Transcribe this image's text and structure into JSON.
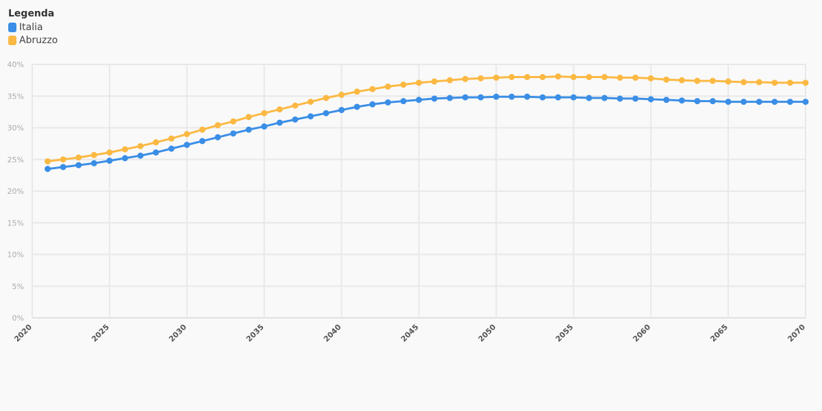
{
  "legend": {
    "title": "Legenda",
    "items": [
      {
        "label": "Italia",
        "color": "#3a8ee6"
      },
      {
        "label": "Abruzzo",
        "color": "#fbb943"
      }
    ]
  },
  "chart_data": {
    "type": "line",
    "title": "",
    "xlabel": "",
    "ylabel": "",
    "xlim": [
      2020,
      2070
    ],
    "ylim": [
      0,
      40
    ],
    "grid": true,
    "legend_position": "top-left",
    "x_ticks": [
      "2020",
      "2025",
      "2030",
      "2035",
      "2040",
      "2045",
      "2050",
      "2055",
      "2060",
      "2065",
      "2070"
    ],
    "y_ticks": [
      "0%",
      "5%",
      "10%",
      "15%",
      "20%",
      "25%",
      "30%",
      "35%",
      "40%"
    ],
    "x": [
      2021,
      2022,
      2023,
      2024,
      2025,
      2026,
      2027,
      2028,
      2029,
      2030,
      2031,
      2032,
      2033,
      2034,
      2035,
      2036,
      2037,
      2038,
      2039,
      2040,
      2041,
      2042,
      2043,
      2044,
      2045,
      2046,
      2047,
      2048,
      2049,
      2050,
      2051,
      2052,
      2053,
      2054,
      2055,
      2056,
      2057,
      2058,
      2059,
      2060,
      2061,
      2062,
      2063,
      2064,
      2065,
      2066,
      2067,
      2068,
      2069,
      2070
    ],
    "series": [
      {
        "name": "Italia",
        "color": "#3a8ee6",
        "values": [
          23.5,
          23.8,
          24.1,
          24.4,
          24.8,
          25.2,
          25.6,
          26.1,
          26.7,
          27.3,
          27.9,
          28.5,
          29.1,
          29.7,
          30.2,
          30.8,
          31.3,
          31.8,
          32.3,
          32.8,
          33.3,
          33.7,
          34.0,
          34.2,
          34.4,
          34.6,
          34.7,
          34.8,
          34.8,
          34.9,
          34.9,
          34.9,
          34.8,
          34.8,
          34.8,
          34.7,
          34.7,
          34.6,
          34.6,
          34.5,
          34.4,
          34.3,
          34.2,
          34.2,
          34.1,
          34.1,
          34.1,
          34.1,
          34.1,
          34.1
        ]
      },
      {
        "name": "Abruzzo",
        "color": "#fbb943",
        "values": [
          24.7,
          25.0,
          25.3,
          25.7,
          26.1,
          26.6,
          27.1,
          27.7,
          28.3,
          29.0,
          29.7,
          30.4,
          31.0,
          31.7,
          32.3,
          32.9,
          33.5,
          34.1,
          34.7,
          35.2,
          35.7,
          36.1,
          36.5,
          36.8,
          37.1,
          37.3,
          37.5,
          37.7,
          37.8,
          37.9,
          38.0,
          38.0,
          38.0,
          38.1,
          38.0,
          38.0,
          38.0,
          37.9,
          37.9,
          37.8,
          37.6,
          37.5,
          37.4,
          37.4,
          37.3,
          37.2,
          37.2,
          37.1,
          37.1,
          37.1
        ]
      }
    ]
  }
}
